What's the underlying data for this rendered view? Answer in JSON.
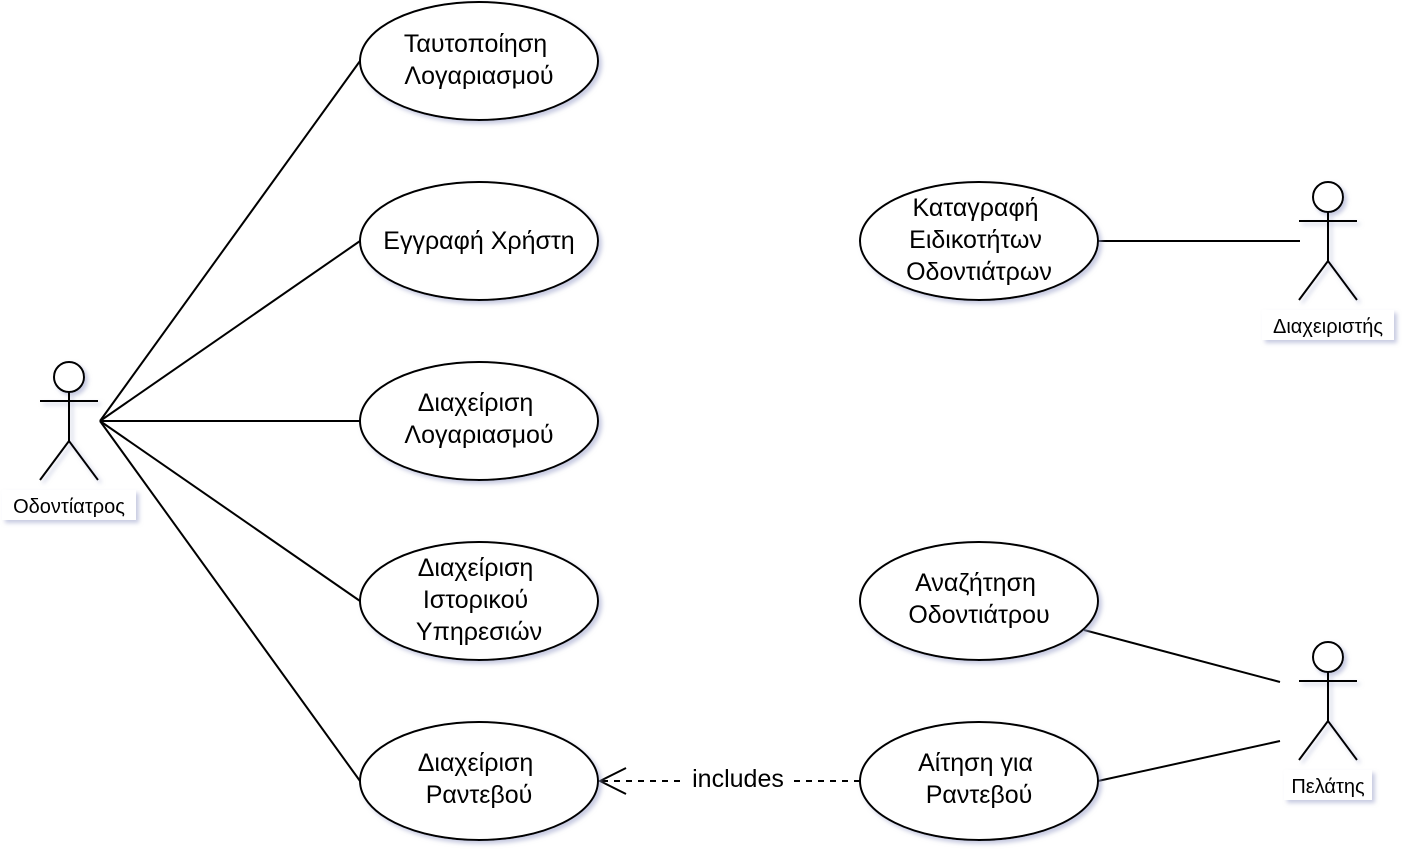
{
  "actors": {
    "dentist": "Οδοντίατρος",
    "admin": "Διαχειριστής",
    "client": "Πελάτης"
  },
  "use_cases": {
    "authentication": [
      "Ταυτοποίηση",
      "Λογαριασμού"
    ],
    "register": [
      "Εγγραφή Χρήστη"
    ],
    "account_management": [
      "Διαχείριση",
      "Λογαριασμού"
    ],
    "service_history": [
      "Διαχείριση",
      "Ιστορικού",
      "Υπηρεσιών"
    ],
    "appointment_management": [
      "Διαχείριση",
      "Ραντεβού"
    ],
    "specialties": [
      "Καταγραφή",
      "Ειδικοτήτων",
      "Οδοντιάτρων"
    ],
    "search_dentist": [
      "Αναζήτηση",
      "Οδοντιάτρου"
    ],
    "appointment_request": [
      "Αίτηση για",
      "Ραντεβού"
    ]
  },
  "relations": {
    "includes_label": "includes"
  }
}
